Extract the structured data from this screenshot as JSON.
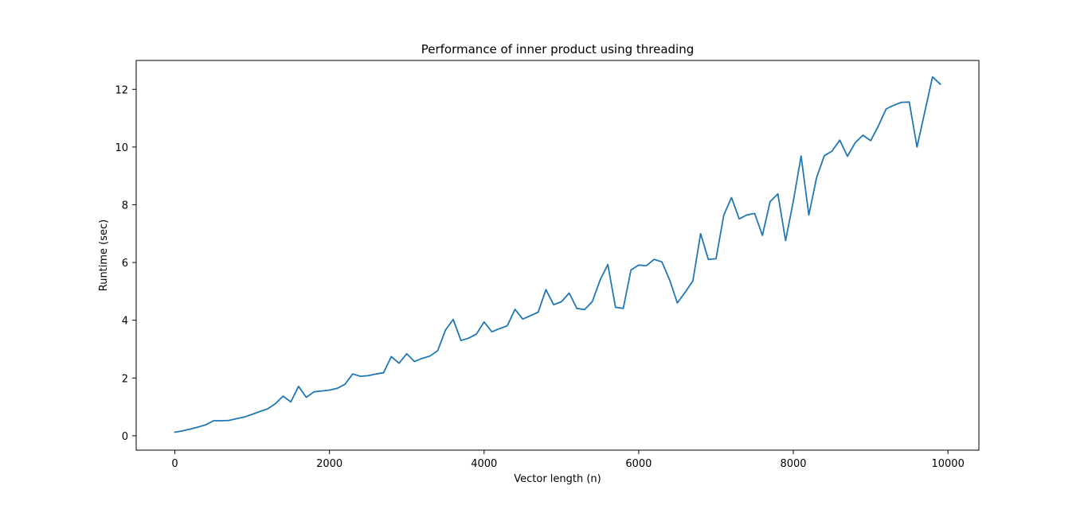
{
  "chart_data": {
    "type": "line",
    "title": "Performance of inner product using threading",
    "xlabel": "Vector length (n)",
    "ylabel": "Runtime (sec)",
    "xlim": [
      -500,
      10400
    ],
    "ylim": [
      -0.5,
      13.0
    ],
    "xticks": [
      0,
      2000,
      4000,
      6000,
      8000,
      10000
    ],
    "xtick_labels": [
      "0",
      "2000",
      "4000",
      "6000",
      "8000",
      "10000"
    ],
    "yticks": [
      0,
      2,
      4,
      6,
      8,
      10,
      12
    ],
    "ytick_labels": [
      "0",
      "2",
      "4",
      "6",
      "8",
      "10",
      "12"
    ],
    "grid": false,
    "legend": "none",
    "series": [
      {
        "color": "#1f77b4",
        "x": [
          0,
          100,
          200,
          300,
          400,
          500,
          600,
          700,
          800,
          900,
          1000,
          1100,
          1200,
          1300,
          1400,
          1500,
          1600,
          1700,
          1800,
          1900,
          2000,
          2100,
          2200,
          2300,
          2400,
          2500,
          2600,
          2700,
          2800,
          2900,
          3000,
          3100,
          3200,
          3300,
          3400,
          3500,
          3600,
          3700,
          3800,
          3900,
          4000,
          4100,
          4200,
          4300,
          4400,
          4500,
          4600,
          4700,
          4800,
          4900,
          5000,
          5100,
          5200,
          5300,
          5400,
          5500,
          5600,
          5700,
          5800,
          5900,
          6000,
          6100,
          6200,
          6300,
          6400,
          6500,
          6600,
          6700,
          6800,
          6900,
          7000,
          7100,
          7200,
          7300,
          7400,
          7500,
          7600,
          7700,
          7800,
          7900,
          8000,
          8100,
          8200,
          8300,
          8400,
          8500,
          8600,
          8700,
          8800,
          8900,
          9000,
          9100,
          9200,
          9300,
          9400,
          9500,
          9600,
          9700,
          9800,
          9900
        ],
        "y": [
          0.12,
          0.17,
          0.23,
          0.3,
          0.38,
          0.52,
          0.52,
          0.53,
          0.59,
          0.65,
          0.74,
          0.84,
          0.93,
          1.11,
          1.37,
          1.17,
          1.71,
          1.33,
          1.52,
          1.55,
          1.58,
          1.64,
          1.78,
          2.14,
          2.06,
          2.08,
          2.14,
          2.18,
          2.74,
          2.51,
          2.84,
          2.57,
          2.68,
          2.76,
          2.95,
          3.66,
          4.03,
          3.3,
          3.38,
          3.52,
          3.94,
          3.6,
          3.71,
          3.81,
          4.38,
          4.04,
          4.16,
          4.28,
          5.06,
          4.54,
          4.64,
          4.94,
          4.41,
          4.37,
          4.65,
          5.39,
          5.93,
          4.45,
          4.41,
          5.74,
          5.91,
          5.89,
          6.11,
          6.02,
          5.4,
          4.6,
          4.97,
          5.36,
          7.0,
          6.11,
          6.13,
          7.64,
          8.25,
          7.51,
          7.65,
          7.7,
          6.94,
          8.11,
          8.38,
          6.76,
          8.12,
          9.69,
          7.64,
          8.94,
          9.7,
          9.86,
          10.24,
          9.68,
          10.15,
          10.41,
          10.22,
          10.73,
          11.32,
          11.45,
          11.55,
          11.56,
          10.0,
          11.22,
          12.43,
          12.18
        ]
      }
    ]
  }
}
